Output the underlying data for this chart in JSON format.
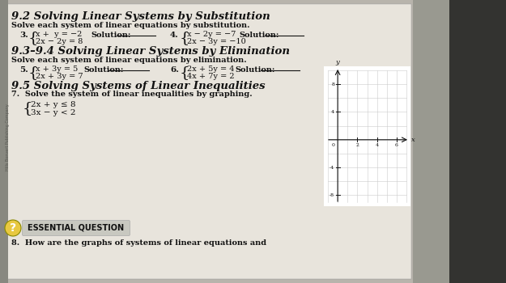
{
  "bg_color": "#b8b4ac",
  "page_color": "#e8e4dc",
  "text_color": "#111111",
  "section1_title": "9.2 Solving Linear Systems by Substitution",
  "section1_subtitle": "Solve each system of linear equations by substitution.",
  "prob3_num": "3.",
  "prob3_eq1": "x +  y = −2",
  "prob3_eq2": "2x − 2y = 8",
  "prob3_sol": "Solution:",
  "prob4_num": "4.",
  "prob4_eq1": "x − 2y = −7",
  "prob4_eq2": "2x − 3y = −10",
  "prob4_sol": "Solution:",
  "section2_title": "9.3–9.4 Solving Linear Systems by Elimination",
  "section2_subtitle": "Solve each system of linear equations by elimination.",
  "prob5_num": "5.",
  "prob5_eq1": "x + 3y = 5",
  "prob5_eq2": "2x + 3y = 7",
  "prob5_sol": "Solution:",
  "prob6_num": "6.",
  "prob6_eq1": "2x + 5y = 4",
  "prob6_eq2": "4x + 7y = 2",
  "prob6_sol": "Solution:",
  "section3_title": "9.5 Solving Systems of Linear Inequalities",
  "prob7_text": "7.  Solve the system of linear inequalities by graphing.",
  "prob7_eq1": "2x + y ≤ 8",
  "prob7_eq2": "3x − y < 2",
  "essential_label": "ESSENTIAL QUESTION",
  "essential_q": "8.  How are the graphs of systems of linear equations and",
  "graph_xlim": [
    -1,
    7
  ],
  "graph_ylim": [
    -9,
    10
  ],
  "graph_xticks": [
    2,
    4,
    6
  ],
  "graph_yticks": [
    -8,
    -4,
    4,
    8
  ],
  "publisher": "Hills Bonvert Publishing Company"
}
